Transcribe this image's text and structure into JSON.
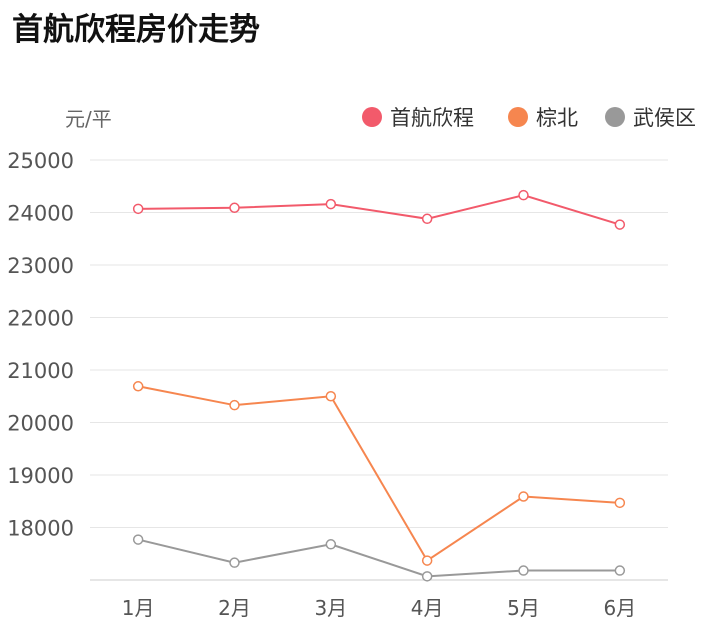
{
  "chart_data": {
    "type": "line",
    "title": "首航欣程房价走势",
    "ylabel": "元/平",
    "xlabel": "",
    "categories": [
      "1月",
      "2月",
      "3月",
      "4月",
      "5月",
      "6月"
    ],
    "ylim": [
      17000,
      25000
    ],
    "yticks": [
      18000,
      19000,
      20000,
      21000,
      22000,
      23000,
      24000,
      25000
    ],
    "grid": true,
    "legend_position": "top-right",
    "series": [
      {
        "name": "首航欣程",
        "color": "#f25a6b",
        "values": [
          24070,
          24090,
          24160,
          23880,
          24330,
          23770
        ]
      },
      {
        "name": "棕北",
        "color": "#f6864f",
        "values": [
          20690,
          20330,
          20500,
          17370,
          18590,
          18470
        ]
      },
      {
        "name": "武侯区",
        "color": "#999999",
        "values": [
          17770,
          17330,
          17680,
          17070,
          17180,
          17180
        ]
      }
    ]
  }
}
